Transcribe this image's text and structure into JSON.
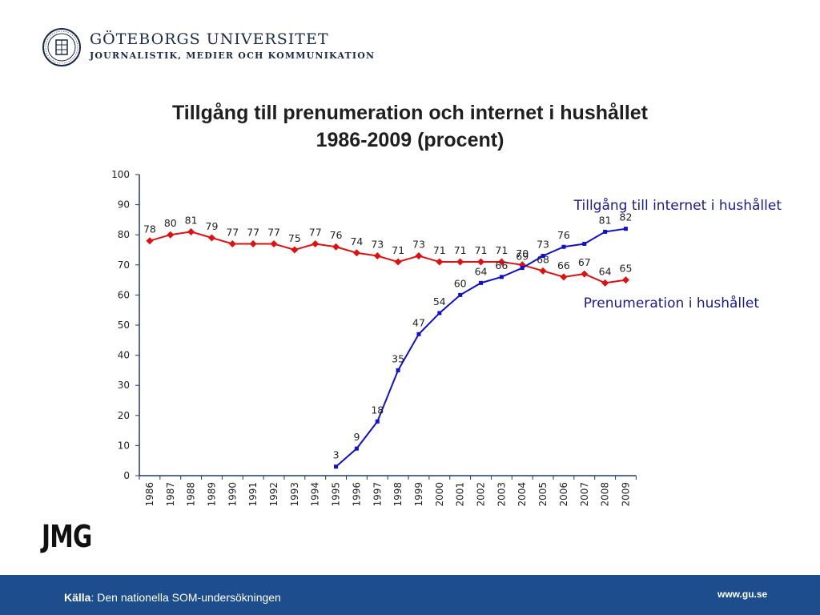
{
  "header": {
    "university": "GÖTEBORGS UNIVERSITET",
    "department": "JOURNALISTIK, MEDIER OCH KOMMUNIKATION"
  },
  "footer": {
    "source_label": "Källa",
    "source_text": ": Den nationella SOM-undersökningen",
    "url": "www.gu.se",
    "logo": "JMG"
  },
  "colors": {
    "internet": "#1010d0",
    "subscription": "#e01010",
    "footer_bg": "#1d4d8c",
    "label_internet": "#1a1a8c"
  },
  "chart_data": {
    "type": "line",
    "title_line1": "Tillgång till prenumeration och internet i hushållet",
    "title_line2": "1986-2009 (procent)",
    "x": [
      1986,
      1987,
      1988,
      1989,
      1990,
      1991,
      1992,
      1993,
      1994,
      1995,
      1996,
      1997,
      1998,
      1999,
      2000,
      2001,
      2002,
      2003,
      2004,
      2005,
      2006,
      2007,
      2008,
      2009
    ],
    "ylim": [
      0,
      100
    ],
    "yticks": [
      0,
      10,
      20,
      30,
      40,
      50,
      60,
      70,
      80,
      90,
      100
    ],
    "grid": false,
    "series": [
      {
        "name": "Prenumeration i hushållet",
        "marker": "diamond",
        "values": [
          78,
          80,
          81,
          79,
          77,
          77,
          77,
          75,
          77,
          76,
          74,
          73,
          71,
          73,
          71,
          71,
          71,
          71,
          70,
          68,
          66,
          67,
          64,
          65
        ],
        "labels": [
          "78",
          "80",
          "81",
          "79",
          "77",
          "77",
          "77",
          "75",
          "77",
          "76",
          "74",
          "73",
          "71",
          "73",
          "71",
          "71",
          "71",
          "71",
          "70",
          "68",
          "66",
          "67",
          "64",
          "65"
        ]
      },
      {
        "name": "Tillgång till internet i hushållet",
        "marker": "square",
        "values": [
          null,
          null,
          null,
          null,
          null,
          null,
          null,
          null,
          null,
          3,
          9,
          18,
          35,
          47,
          54,
          60,
          64,
          66,
          69,
          73,
          76,
          77,
          81,
          82
        ],
        "labels": [
          "",
          "",
          "",
          "",
          "",
          "",
          "",
          "",
          "",
          "3",
          "9",
          "18",
          "35",
          "47",
          "54",
          "60",
          "64",
          "66",
          "69",
          "73",
          "76",
          "",
          "81",
          "82"
        ]
      }
    ]
  }
}
